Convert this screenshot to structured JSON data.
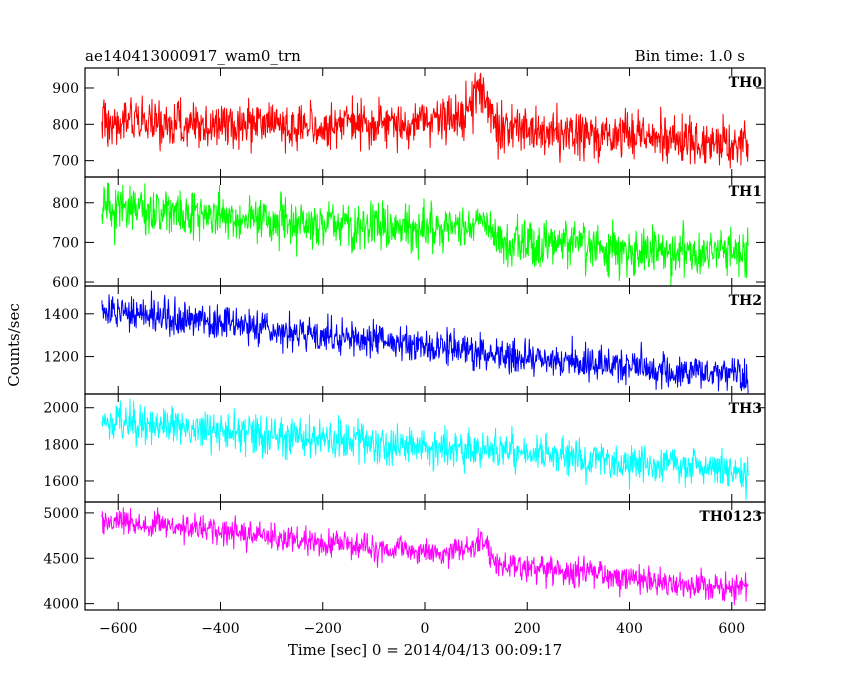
{
  "header": {
    "title": "ae140413000917_wam0_trn",
    "bin_time": "Bin time: 1.0 s"
  },
  "axes": {
    "xlabel": "Time [sec] 0 = 2014/04/13 00:09:17",
    "ylabel": "Counts/sec",
    "xlim": [
      -665,
      665
    ],
    "xticks": [
      -600,
      -400,
      -200,
      0,
      200,
      400,
      600
    ],
    "xtick_labels": [
      "−600",
      "−400",
      "−200",
      "0",
      "200",
      "400",
      "600"
    ]
  },
  "chart_data": {
    "type": "line",
    "x_start": -632,
    "x_end": 632,
    "bin_time_s": 1.0,
    "panels": [
      {
        "name": "TH0",
        "color": "#ff0000",
        "ylim": [
          655,
          955
        ],
        "yticks": [
          700,
          800,
          900
        ],
        "ytick_labels": [
          "700",
          "800",
          "900"
        ],
        "trend": [
          [
            -632,
            805
          ],
          [
            -400,
            800
          ],
          [
            -200,
            795
          ],
          [
            0,
            800
          ],
          [
            80,
            830
          ],
          [
            100,
            880
          ],
          [
            112,
            900
          ],
          [
            140,
            790
          ],
          [
            300,
            775
          ],
          [
            632,
            745
          ]
        ],
        "noise": 32
      },
      {
        "name": "TH1",
        "color": "#00ff00",
        "ylim": [
          590,
          865
        ],
        "yticks": [
          600,
          700,
          800
        ],
        "ytick_labels": [
          "600",
          "700",
          "800"
        ],
        "trend": [
          [
            -632,
            790
          ],
          [
            -400,
            765
          ],
          [
            -200,
            745
          ],
          [
            0,
            735
          ],
          [
            90,
            740
          ],
          [
            105,
            760
          ],
          [
            140,
            700
          ],
          [
            300,
            690
          ],
          [
            632,
            665
          ]
        ],
        "noise": 30
      },
      {
        "name": "TH2",
        "color": "#0000ff",
        "ylim": [
          1025,
          1530
        ],
        "yticks": [
          1200,
          1400
        ],
        "ytick_labels": [
          "1200",
          "1400"
        ],
        "trend": [
          [
            -632,
            1415
          ],
          [
            -400,
            1355
          ],
          [
            -200,
            1295
          ],
          [
            0,
            1245
          ],
          [
            105,
            1225
          ],
          [
            200,
            1195
          ],
          [
            400,
            1150
          ],
          [
            632,
            1110
          ]
        ],
        "noise": 40
      },
      {
        "name": "TH3",
        "color": "#00ffff",
        "ylim": [
          1485,
          2075
        ],
        "yticks": [
          1600,
          1800,
          2000
        ],
        "ytick_labels": [
          "1600",
          "1800",
          "2000"
        ],
        "trend": [
          [
            -632,
            1925
          ],
          [
            -400,
            1875
          ],
          [
            -200,
            1830
          ],
          [
            0,
            1790
          ],
          [
            200,
            1750
          ],
          [
            400,
            1705
          ],
          [
            632,
            1650
          ]
        ],
        "noise": 52
      },
      {
        "name": "TH0123",
        "color": "#ff00ff",
        "ylim": [
          3930,
          5120
        ],
        "yticks": [
          4000,
          4500,
          5000
        ],
        "ytick_labels": [
          "4000",
          "4500",
          "5000"
        ],
        "trend": [
          [
            -632,
            4920
          ],
          [
            -400,
            4790
          ],
          [
            -200,
            4660
          ],
          [
            0,
            4570
          ],
          [
            90,
            4590
          ],
          [
            108,
            4720
          ],
          [
            140,
            4420
          ],
          [
            300,
            4340
          ],
          [
            632,
            4140
          ]
        ],
        "noise": 75
      }
    ]
  }
}
